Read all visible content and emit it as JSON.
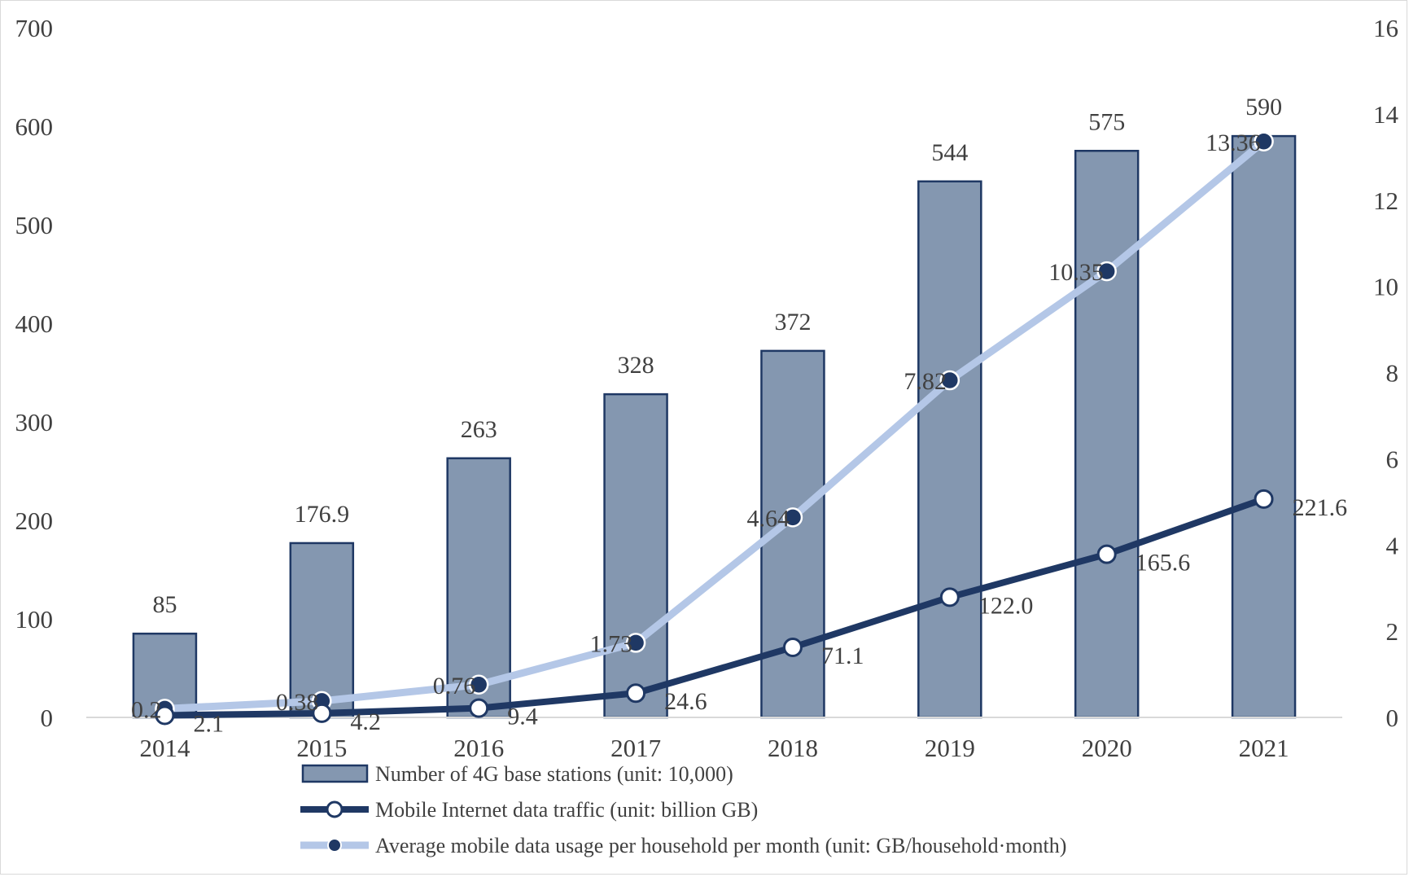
{
  "chart_data": {
    "type": "bar",
    "categories": [
      "2014",
      "2015",
      "2016",
      "2017",
      "2018",
      "2019",
      "2020",
      "2021"
    ],
    "series": [
      {
        "name": "Number of 4G base stations (unit: 10,000)",
        "type": "bar",
        "axis": "left",
        "values": [
          85,
          176.9,
          263,
          328,
          372,
          544,
          575,
          590
        ],
        "labels": [
          "85",
          "176.9",
          "263",
          "328",
          "372",
          "544",
          "575",
          "590"
        ],
        "color": "#8497b0",
        "border_color": "#1f3864"
      },
      {
        "name": "Mobile Internet data traffic (unit: billion GB)",
        "type": "line",
        "axis": "left",
        "values": [
          2.1,
          4.2,
          9.4,
          24.6,
          71.1,
          122.0,
          165.6,
          221.6
        ],
        "labels": [
          "2.1",
          "4.2",
          "9.4",
          "24.6",
          "71.1",
          "122.0",
          "165.6",
          "221.6"
        ],
        "color": "#1f3864",
        "marker": "hollow-circle"
      },
      {
        "name": "Average mobile data usage per household per month (unit: GB/household·month)",
        "type": "line",
        "axis": "right",
        "values": [
          0.2,
          0.38,
          0.76,
          1.73,
          4.64,
          7.82,
          10.35,
          13.36
        ],
        "labels": [
          "0.2",
          "0.38",
          "0.76",
          "1.73",
          "4.64",
          "7.82",
          "10.35",
          "13.36"
        ],
        "color": "#b4c7e7",
        "marker": "filled-circle",
        "marker_color": "#1f3864"
      }
    ],
    "left_axis": {
      "ylim": [
        0,
        700
      ],
      "ticks": [
        "0",
        "100",
        "200",
        "300",
        "400",
        "500",
        "600",
        "700"
      ]
    },
    "right_axis": {
      "ylim": [
        0,
        16
      ],
      "ticks": [
        "0",
        "2",
        "4",
        "6",
        "8",
        "10",
        "12",
        "14",
        "16"
      ]
    },
    "title": "",
    "xlabel": "",
    "ylabel": "",
    "grid": false,
    "legend_position": "bottom"
  }
}
